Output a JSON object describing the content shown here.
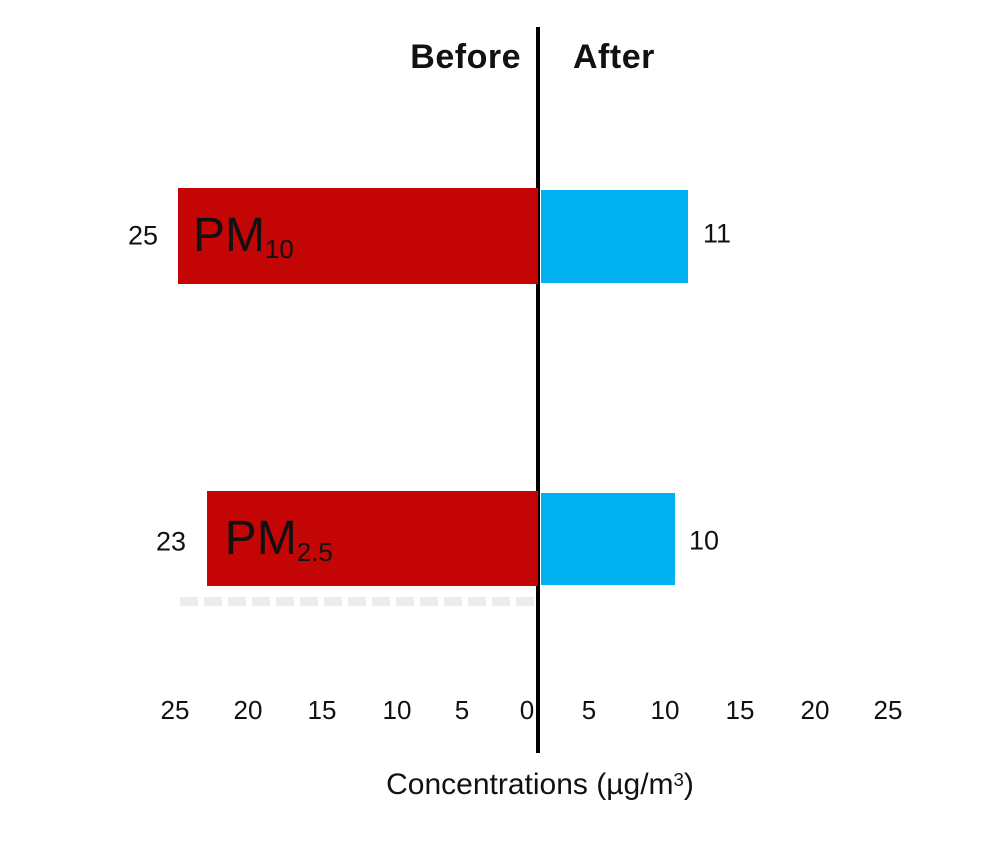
{
  "header": {
    "before_label": "Before",
    "after_label": "After"
  },
  "rows": [
    {
      "id": "pm10",
      "label_prefix": "PM",
      "label_subscript": "10",
      "before_value": "25",
      "after_value": "11"
    },
    {
      "id": "pm25",
      "label_prefix": "PM",
      "label_subscript": "2.5",
      "before_value": "23",
      "after_value": "10"
    }
  ],
  "axis": {
    "tick_labels": [
      "25",
      "20",
      "15",
      "10",
      "5",
      "0",
      "5",
      "10",
      "15",
      "20",
      "25"
    ],
    "title_text": "Concentrations (µg/m",
    "title_superscript": "3",
    "title_close": ")"
  },
  "colors": {
    "before_bar": "#c40505",
    "after_bar": "#00b0f0",
    "axis_line": "#000000",
    "text": "#111111"
  },
  "chart_data": {
    "type": "bar",
    "variant": "diverging-horizontal-tornado",
    "categories": [
      "PM10",
      "PM2.5"
    ],
    "series": [
      {
        "name": "Before",
        "side": "left",
        "values": [
          25,
          23
        ],
        "color": "#c40505"
      },
      {
        "name": "After",
        "side": "right",
        "values": [
          11,
          10
        ],
        "color": "#00b0f0"
      }
    ],
    "title": "",
    "xlabel": "Concentrations (µg/m³)",
    "ylabel": "",
    "xlim_each_side": [
      0,
      25
    ],
    "axis_ticks": [
      25,
      20,
      15,
      10,
      5,
      0,
      5,
      10,
      15,
      20,
      25
    ],
    "grid": false,
    "legend_position": "column headers above chart (Before left, After right)",
    "value_labels_shown": true
  }
}
